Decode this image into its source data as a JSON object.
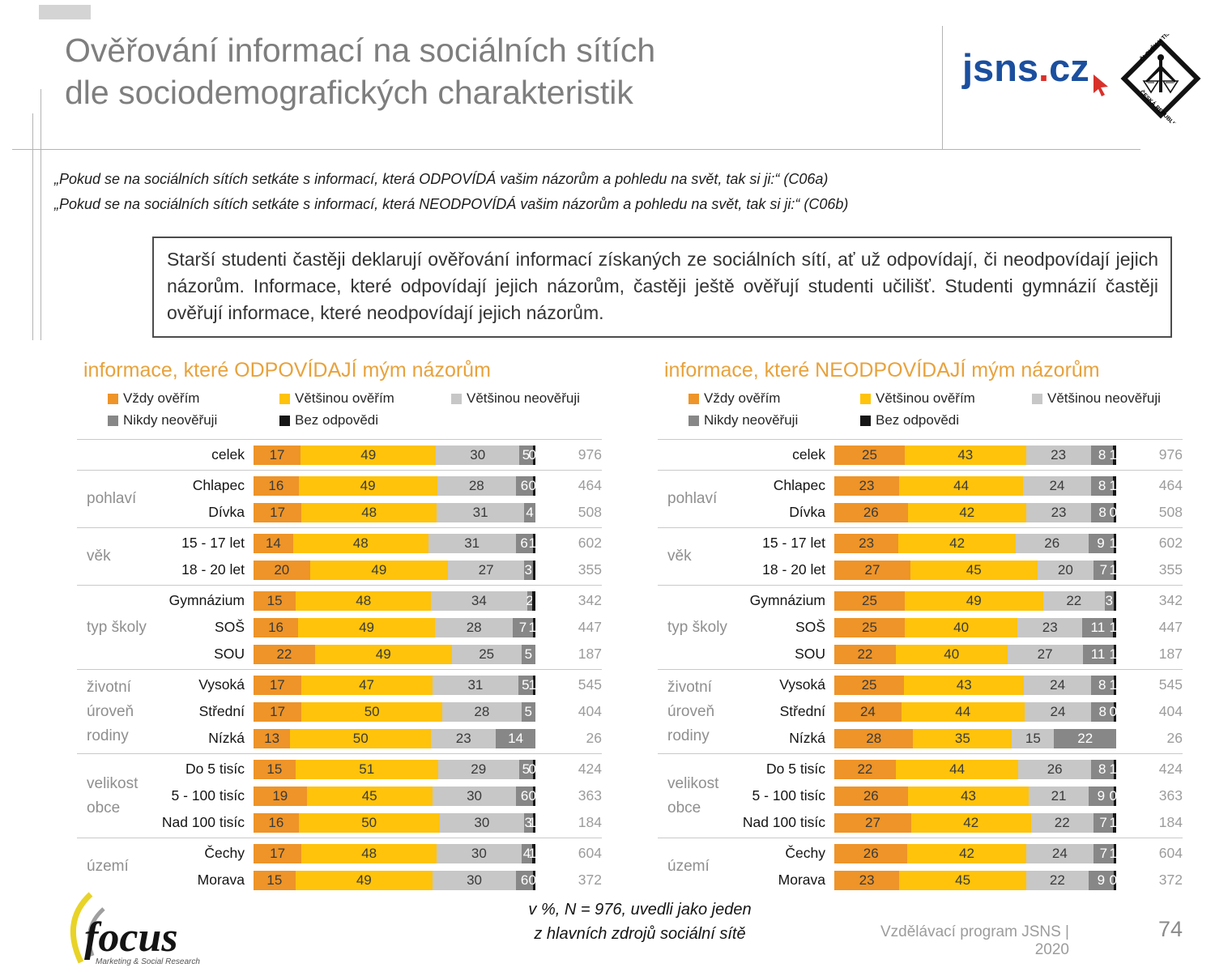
{
  "slide": {
    "title_line1": "Ověřování informací na sociálních sítích",
    "title_line2": "dle sociodemografických charakteristik",
    "quote1": "„Pokud se na sociálních sítích setkáte s informací, která ODPOVÍDÁ vašim názorům a pohledu na svět, tak si ji:“ (C06a)",
    "quote2": "„Pokud se na sociálních sítích setkáte s informací, která NEODPOVÍDÁ vašim názorům a pohledu na svět, tak si ji:“ (C06b)",
    "summary": "Starší studenti častěji deklarují ověřování informací získaných ze sociálních sítí, ať už odpovídají, či neodpovídají jejich názorům. Informace, které odpovídají jejich názorům, častěji ještě ověřují studenti učilišť. Studenti gymnázií častěji ověřují informace, které neodpovídají jejich názorům.",
    "note_line1": "v %, N = 976, uvedli jako jeden",
    "note_line2": "z hlavních zdrojů sociální sítě",
    "footer_right": "Vzdělávací program JSNS  |  2020",
    "page_number": "74",
    "jsns_logo_text_1": "jsns",
    "jsns_logo_dot": ".",
    "jsns_logo_text_2": "cz",
    "diamond_logo_text_top": "ČLOVĚK V TÍSNI",
    "diamond_logo_text_bottom": "ČESKÁ REPUBLIKA",
    "focus_logo_text": "focus",
    "focus_logo_tagline": "Marketing & Social Research"
  },
  "colors": {
    "vzdy": "#ee9428",
    "vetsinou": "#ffc30b",
    "vetsinou_ne": "#c7c7c7",
    "nikdy": "#878787",
    "bez": "#161616",
    "header_orange": "#e8a23c",
    "jsns_blue": "#1b4f9e",
    "jsns_red": "#d8312a"
  },
  "legend": [
    {
      "label": "Vždy ověřím",
      "color": "#ee9428"
    },
    {
      "label": "Většinou ověřím",
      "color": "#ffc30b"
    },
    {
      "label": "Většinou neověřuji",
      "color": "#c7c7c7"
    },
    {
      "label": "Nikdy neověřuji",
      "color": "#878787"
    },
    {
      "label": "Bez odpovědi",
      "color": "#161616"
    }
  ],
  "chart_data": [
    {
      "type": "bar",
      "stacked": true,
      "orientation": "horizontal",
      "unit": "%",
      "x_range": [
        0,
        100
      ],
      "title": "informace, které ODPOVÍDAJÍ mým názorům",
      "series_labels": [
        "Vždy ověřím",
        "Většinou ověřím",
        "Většinou neověřuji",
        "Nikdy neověřuji",
        "Bez odpovědi"
      ],
      "groups": [
        {
          "label_lines": [],
          "rows": [
            {
              "label": "celek",
              "values": [
                17,
                49,
                30,
                5,
                0
              ],
              "value_labels": [
                "17",
                "49",
                "30",
                "5",
                "0"
              ],
              "n": 976
            }
          ]
        },
        {
          "label_lines": [
            "pohlaví"
          ],
          "rows": [
            {
              "label": "Chlapec",
              "values": [
                16,
                49,
                28,
                6,
                0
              ],
              "value_labels": [
                "16",
                "49",
                "28",
                "6",
                "0"
              ],
              "n": 464
            },
            {
              "label": "Dívka",
              "values": [
                17,
                48,
                31,
                4,
                0
              ],
              "value_labels": [
                "17",
                "48",
                "31",
                "4",
                ""
              ],
              "n": 508
            }
          ]
        },
        {
          "label_lines": [
            "věk"
          ],
          "rows": [
            {
              "label": "15 - 17 let",
              "values": [
                14,
                48,
                31,
                6,
                1
              ],
              "value_labels": [
                "14",
                "48",
                "31",
                "6",
                "1"
              ],
              "n": 602
            },
            {
              "label": "18 - 20 let",
              "values": [
                20,
                49,
                27,
                3,
                1
              ],
              "value_labels": [
                "20",
                "49",
                "27",
                "3",
                ""
              ],
              "n": 355
            }
          ]
        },
        {
          "label_lines": [
            "typ školy"
          ],
          "rows": [
            {
              "label": "Gymnázium",
              "values": [
                15,
                48,
                34,
                2,
                1
              ],
              "value_labels": [
                "15",
                "48",
                "34",
                "2",
                ""
              ],
              "n": 342
            },
            {
              "label": "SOŠ",
              "values": [
                16,
                49,
                28,
                7,
                1
              ],
              "value_labels": [
                "16",
                "49",
                "28",
                "7",
                "1"
              ],
              "n": 447
            },
            {
              "label": "SOU",
              "values": [
                22,
                49,
                25,
                5,
                0
              ],
              "value_labels": [
                "22",
                "49",
                "25",
                "5",
                ""
              ],
              "n": 187
            }
          ]
        },
        {
          "label_lines": [
            "životní",
            "úroveň",
            "rodiny"
          ],
          "rows": [
            {
              "label": "Vysoká",
              "values": [
                17,
                47,
                31,
                5,
                1
              ],
              "value_labels": [
                "17",
                "47",
                "31",
                "5",
                "1"
              ],
              "n": 545
            },
            {
              "label": "Střední",
              "values": [
                17,
                50,
                28,
                5,
                0
              ],
              "value_labels": [
                "17",
                "50",
                "28",
                "5",
                ""
              ],
              "n": 404
            },
            {
              "label": "Nízká",
              "values": [
                13,
                50,
                23,
                14,
                0
              ],
              "value_labels": [
                "13",
                "50",
                "23",
                "14",
                ""
              ],
              "n": 26
            }
          ]
        },
        {
          "label_lines": [
            "velikost",
            "obce"
          ],
          "rows": [
            {
              "label": "Do 5 tisíc",
              "values": [
                15,
                51,
                29,
                5,
                0
              ],
              "value_labels": [
                "15",
                "51",
                "29",
                "5",
                "0"
              ],
              "n": 424
            },
            {
              "label": "5 - 100 tisíc",
              "values": [
                19,
                45,
                30,
                6,
                0
              ],
              "value_labels": [
                "19",
                "45",
                "30",
                "6",
                "0"
              ],
              "n": 363
            },
            {
              "label": "Nad 100 tisíc",
              "values": [
                16,
                50,
                30,
                3,
                1
              ],
              "value_labels": [
                "16",
                "50",
                "30",
                "3",
                "1"
              ],
              "n": 184
            }
          ]
        },
        {
          "label_lines": [
            "území"
          ],
          "rows": [
            {
              "label": "Čechy",
              "values": [
                17,
                48,
                30,
                4,
                1
              ],
              "value_labels": [
                "17",
                "48",
                "30",
                "4",
                "1"
              ],
              "n": 604
            },
            {
              "label": "Morava",
              "values": [
                15,
                49,
                30,
                6,
                0
              ],
              "value_labels": [
                "15",
                "49",
                "30",
                "6",
                "0"
              ],
              "n": 372
            }
          ]
        }
      ]
    },
    {
      "type": "bar",
      "stacked": true,
      "orientation": "horizontal",
      "unit": "%",
      "x_range": [
        0,
        100
      ],
      "title": "informace, které NEODPOVÍDAJÍ mým názorům",
      "series_labels": [
        "Vždy ověřím",
        "Většinou ověřím",
        "Většinou neověřuji",
        "Nikdy neověřuji",
        "Bez odpovědi"
      ],
      "groups": [
        {
          "label_lines": [],
          "rows": [
            {
              "label": "celek",
              "values": [
                25,
                43,
                23,
                8,
                1
              ],
              "value_labels": [
                "25",
                "43",
                "23",
                "8",
                "1"
              ],
              "n": 976
            }
          ]
        },
        {
          "label_lines": [
            "pohlaví"
          ],
          "rows": [
            {
              "label": "Chlapec",
              "values": [
                23,
                44,
                24,
                8,
                1
              ],
              "value_labels": [
                "23",
                "44",
                "24",
                "8",
                "1"
              ],
              "n": 464
            },
            {
              "label": "Dívka",
              "values": [
                26,
                42,
                23,
                8,
                0
              ],
              "value_labels": [
                "26",
                "42",
                "23",
                "8",
                "0"
              ],
              "n": 508
            }
          ]
        },
        {
          "label_lines": [
            "věk"
          ],
          "rows": [
            {
              "label": "15 - 17 let",
              "values": [
                23,
                42,
                26,
                9,
                1
              ],
              "value_labels": [
                "23",
                "42",
                "26",
                "9",
                "1"
              ],
              "n": 602
            },
            {
              "label": "18 - 20 let",
              "values": [
                27,
                45,
                20,
                7,
                1
              ],
              "value_labels": [
                "27",
                "45",
                "20",
                "7",
                "1"
              ],
              "n": 355
            }
          ]
        },
        {
          "label_lines": [
            "typ školy"
          ],
          "rows": [
            {
              "label": "Gymnázium",
              "values": [
                25,
                49,
                22,
                3,
                1
              ],
              "value_labels": [
                "25",
                "49",
                "22",
                "3",
                ""
              ],
              "n": 342
            },
            {
              "label": "SOŠ",
              "values": [
                25,
                40,
                23,
                11,
                1
              ],
              "value_labels": [
                "25",
                "40",
                "23",
                "11",
                "1"
              ],
              "n": 447
            },
            {
              "label": "SOU",
              "values": [
                22,
                40,
                27,
                11,
                1
              ],
              "value_labels": [
                "22",
                "40",
                "27",
                "11",
                "1"
              ],
              "n": 187
            }
          ]
        },
        {
          "label_lines": [
            "životní",
            "úroveň",
            "rodiny"
          ],
          "rows": [
            {
              "label": "Vysoká",
              "values": [
                25,
                43,
                24,
                8,
                1
              ],
              "value_labels": [
                "25",
                "43",
                "24",
                "8",
                "1"
              ],
              "n": 545
            },
            {
              "label": "Střední",
              "values": [
                24,
                44,
                24,
                8,
                0
              ],
              "value_labels": [
                "24",
                "44",
                "24",
                "8",
                "0"
              ],
              "n": 404
            },
            {
              "label": "Nízká",
              "values": [
                28,
                35,
                15,
                22,
                0
              ],
              "value_labels": [
                "28",
                "35",
                "15",
                "22",
                ""
              ],
              "n": 26
            }
          ]
        },
        {
          "label_lines": [
            "velikost",
            "obce"
          ],
          "rows": [
            {
              "label": "Do 5 tisíc",
              "values": [
                22,
                44,
                26,
                8,
                1
              ],
              "value_labels": [
                "22",
                "44",
                "26",
                "8",
                "1"
              ],
              "n": 424
            },
            {
              "label": "5 - 100 tisíc",
              "values": [
                26,
                43,
                21,
                9,
                0
              ],
              "value_labels": [
                "26",
                "43",
                "21",
                "9",
                "0"
              ],
              "n": 363
            },
            {
              "label": "Nad 100 tisíc",
              "values": [
                27,
                42,
                22,
                7,
                1
              ],
              "value_labels": [
                "27",
                "42",
                "22",
                "7",
                "1"
              ],
              "n": 184
            }
          ]
        },
        {
          "label_lines": [
            "území"
          ],
          "rows": [
            {
              "label": "Čechy",
              "values": [
                26,
                42,
                24,
                7,
                1
              ],
              "value_labels": [
                "26",
                "42",
                "24",
                "7",
                "1"
              ],
              "n": 604
            },
            {
              "label": "Morava",
              "values": [
                23,
                45,
                22,
                9,
                0
              ],
              "value_labels": [
                "23",
                "45",
                "22",
                "9",
                "0"
              ],
              "n": 372
            }
          ]
        }
      ]
    }
  ]
}
